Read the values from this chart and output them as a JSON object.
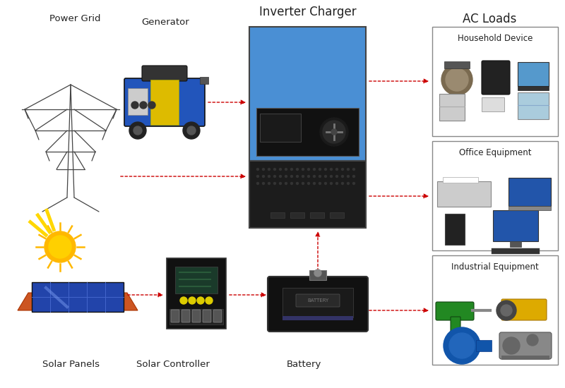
{
  "title": "Inverter Charger",
  "ac_loads_title": "AC Loads",
  "background_color": "#ffffff",
  "arrow_color": "#cc0000",
  "labels": {
    "power_grid": "Power Grid",
    "generator": "Generator",
    "solar_panels": "Solar Panels",
    "solar_controller": "Solar Controller",
    "battery": "Battery",
    "household": "Household Device",
    "office": "Office Equipment",
    "industrial": "Industrial Equipment"
  },
  "label_fontsize": 9.5,
  "title_fontsize": 12,
  "inverter_blue": "#4a8fd4",
  "inverter_black": "#1c1c1c",
  "box_edge_color": "#666666",
  "fig_width": 8.0,
  "fig_height": 5.5,
  "dpi": 100
}
